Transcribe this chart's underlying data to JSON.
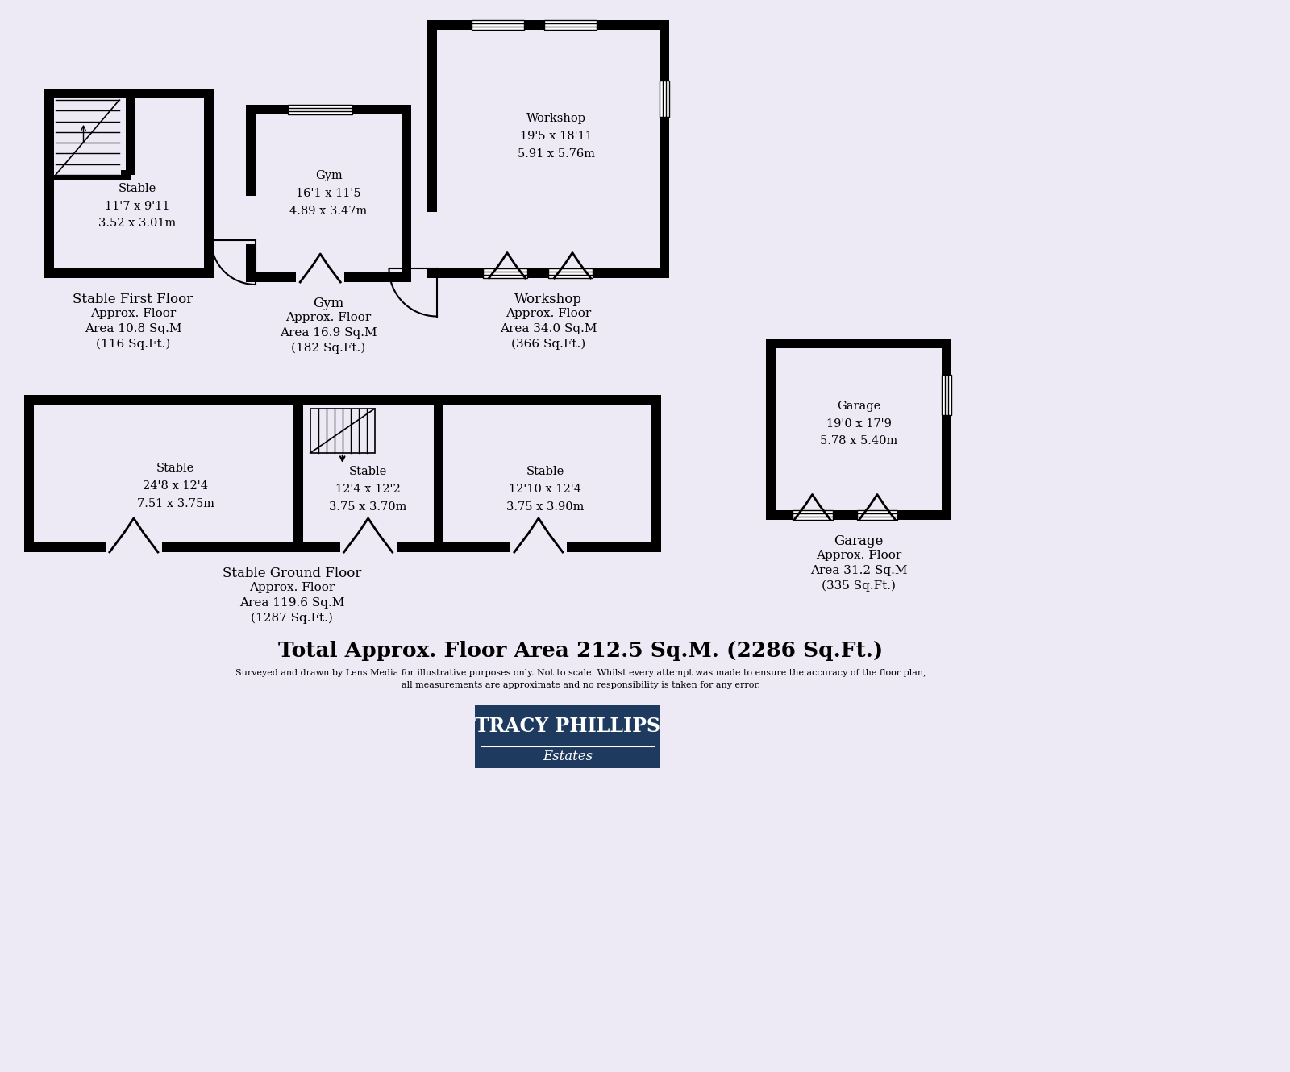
{
  "bg_color": "#ede9f5",
  "wall_color": "#000000",
  "lw": 12,
  "inner_color": "#ede9f5",
  "total_text": "Total Approx. Floor Area 212.5 Sq.M. (2286 Sq.Ft.)",
  "disclaimer": "Surveyed and drawn by Lens Media for illustrative purposes only. Not to scale. Whilst every attempt was made to ensure the accuracy of the floor plan,\nall measurements are approximate and no responsibility is taken for any error.",
  "logo_text": "TRACY PHILLIPS",
  "logo_sub": "Estates",
  "logo_bg": "#1e3a5f"
}
